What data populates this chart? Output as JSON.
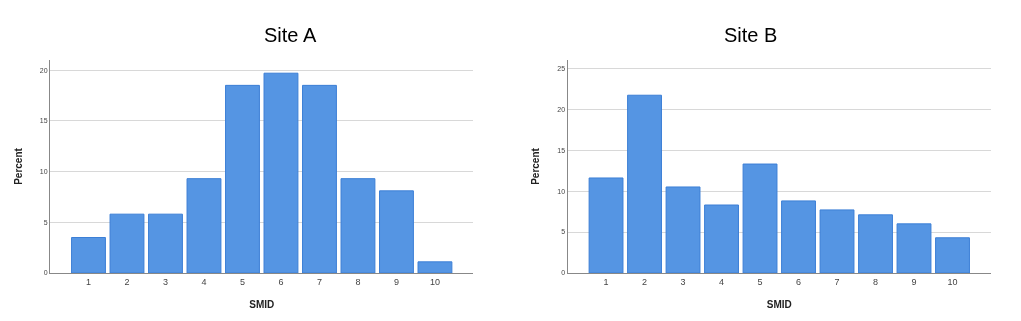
{
  "chart_data": [
    {
      "type": "bar",
      "title": "Site A",
      "xlabel": "SMID",
      "ylabel": "Percent",
      "categories": [
        "1",
        "2",
        "3",
        "4",
        "5",
        "6",
        "7",
        "8",
        "9",
        "10"
      ],
      "values": [
        3.5,
        5.8,
        5.8,
        9.3,
        18.5,
        19.7,
        18.5,
        9.3,
        8.1,
        1.1
      ],
      "color": "#5595e3",
      "ylim": [
        0,
        21
      ],
      "yticks": [
        0,
        5,
        10,
        15,
        20
      ],
      "grid": "y"
    },
    {
      "type": "bar",
      "title": "Site B",
      "xlabel": "SMID",
      "ylabel": "Percent",
      "categories": [
        "1",
        "2",
        "3",
        "4",
        "5",
        "6",
        "7",
        "8",
        "9",
        "10"
      ],
      "values": [
        11.6,
        21.7,
        10.5,
        8.3,
        13.3,
        8.8,
        7.7,
        7.1,
        6.0,
        4.3
      ],
      "color": "#5595e3",
      "ylim": [
        0,
        26
      ],
      "yticks": [
        0,
        5,
        10,
        15,
        20,
        25
      ],
      "grid": "y"
    }
  ]
}
